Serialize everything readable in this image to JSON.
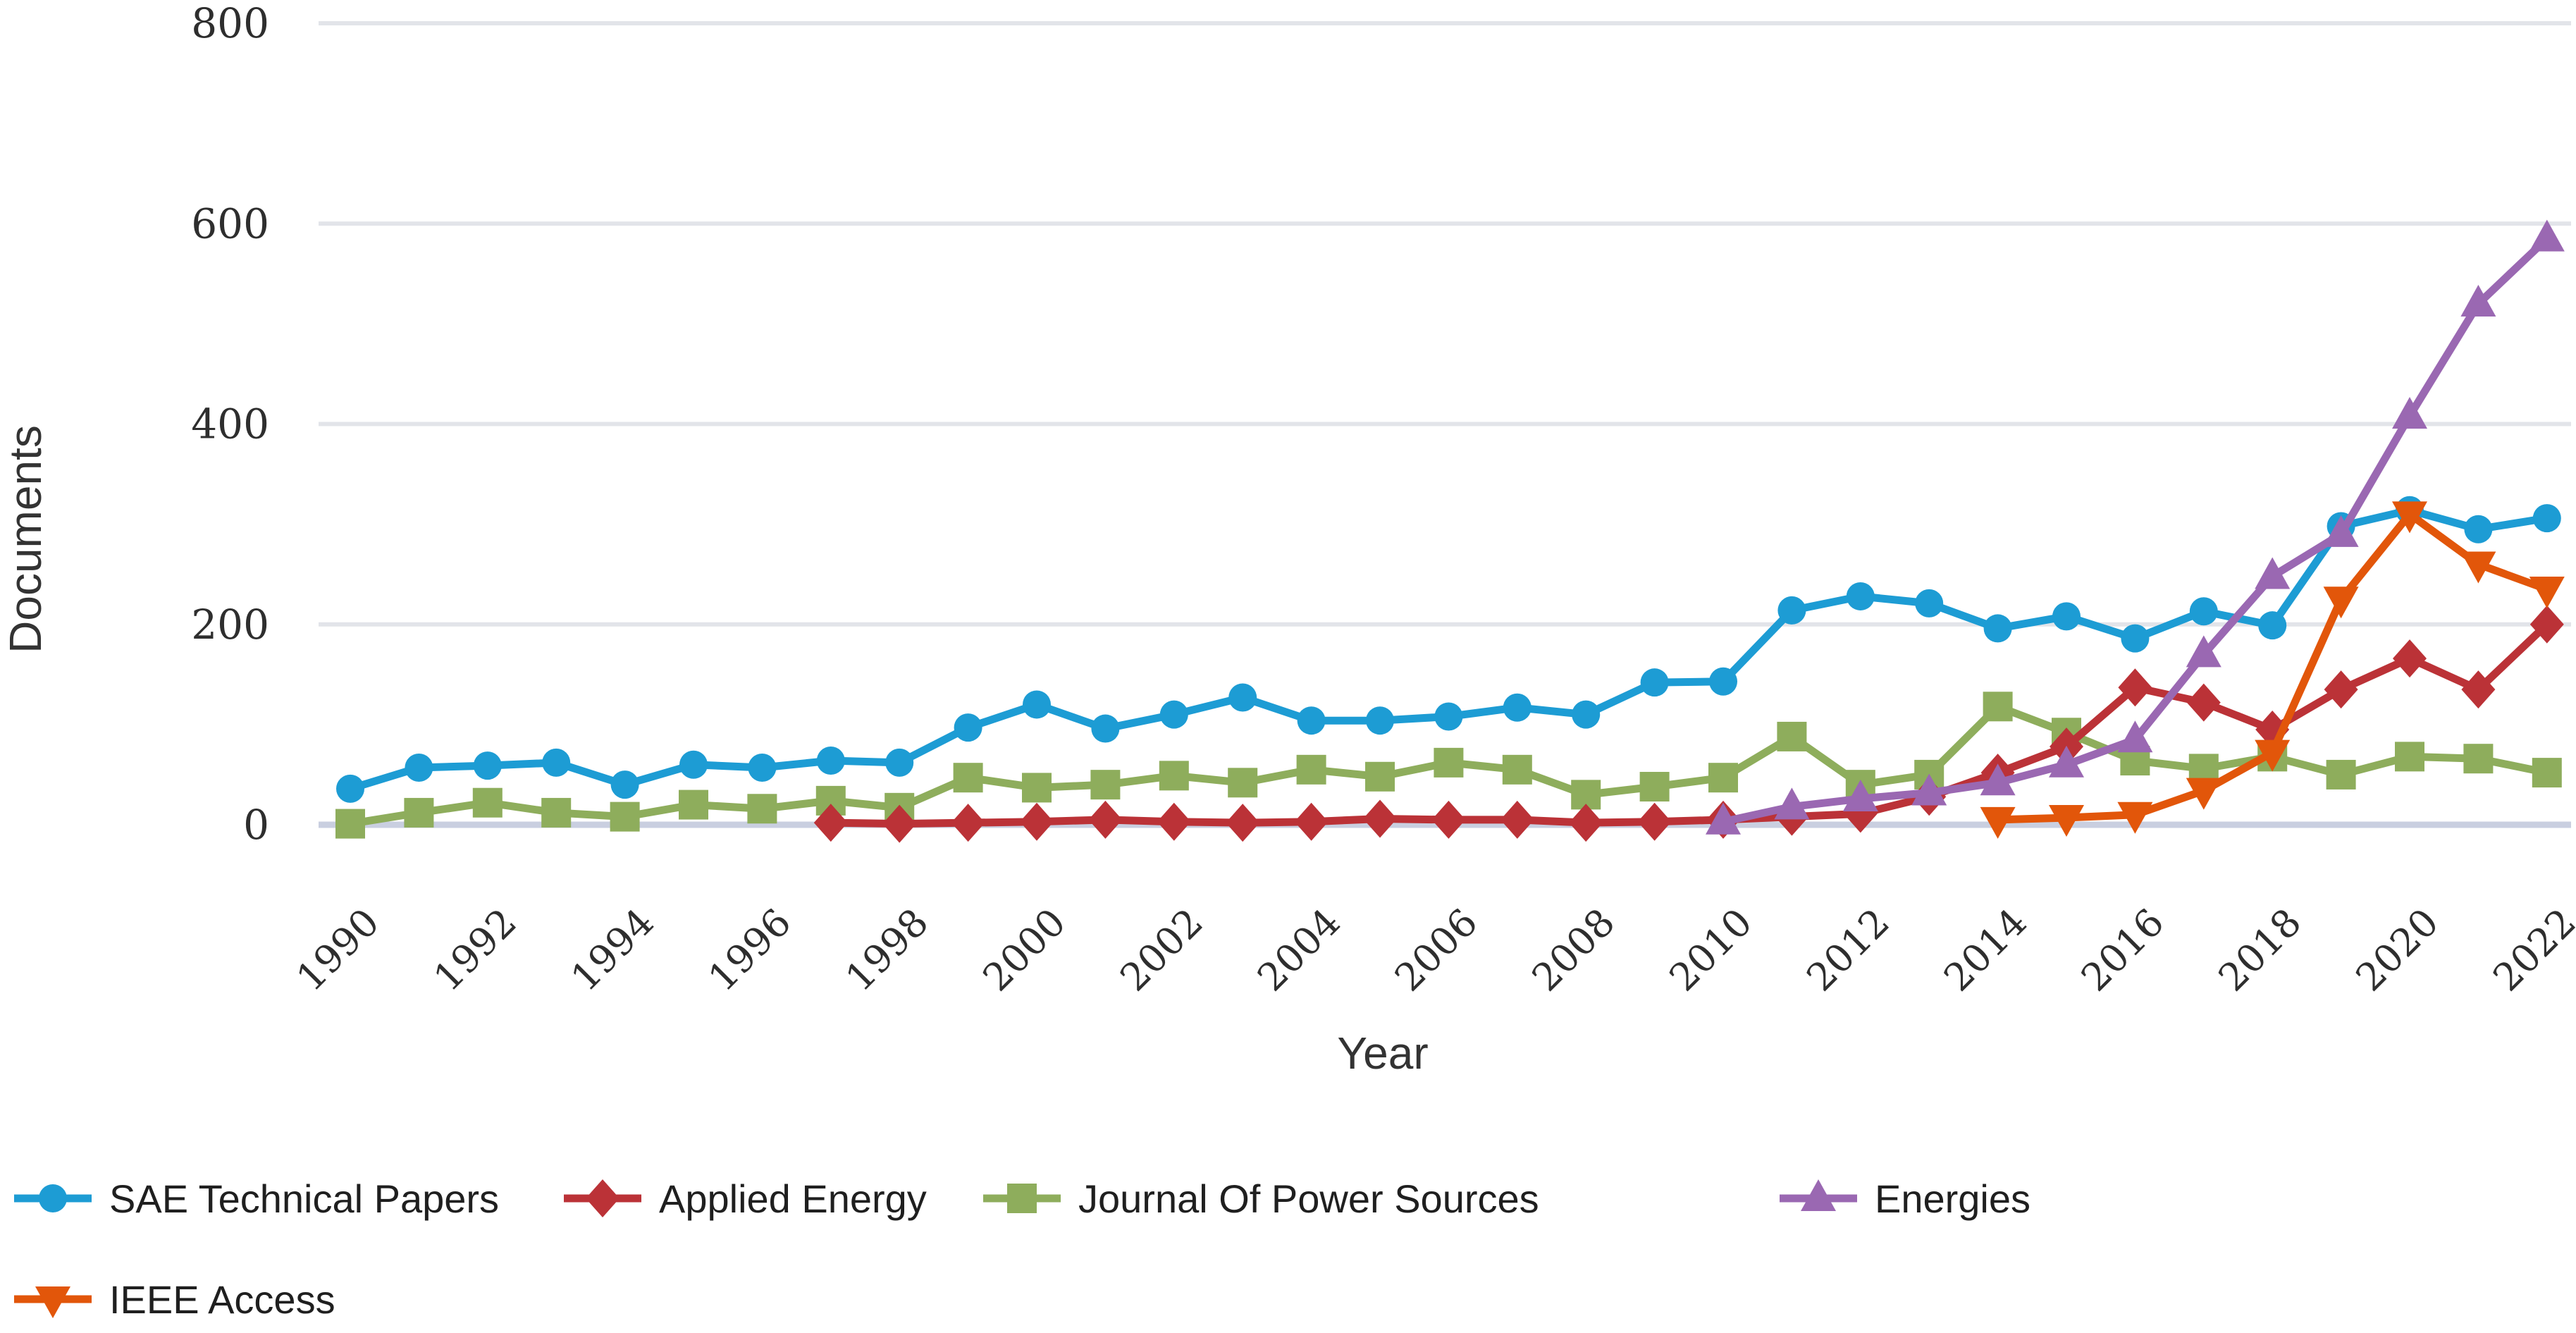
{
  "page": {
    "background_color": "#ffffff",
    "grid_color": "#e2e4e9",
    "zero_line_color": "#c9cfe0",
    "tick_text_color": "#2e2e2e",
    "axis_title_color": "#333333",
    "legend_text_color": "#1f1f1f"
  },
  "chart_data": {
    "type": "line",
    "title": "",
    "xlabel": "Year",
    "ylabel": "Documents",
    "x": [
      1990,
      1991,
      1992,
      1993,
      1994,
      1995,
      1996,
      1997,
      1998,
      1999,
      2000,
      2001,
      2002,
      2003,
      2004,
      2005,
      2006,
      2007,
      2008,
      2009,
      2010,
      2011,
      2012,
      2013,
      2014,
      2015,
      2016,
      2017,
      2018,
      2019,
      2020,
      2021,
      2022
    ],
    "x_tick_labels": [
      "1990",
      "1992",
      "1994",
      "1996",
      "1998",
      "2000",
      "2002",
      "2004",
      "2006",
      "2008",
      "2010",
      "2012",
      "2014",
      "2016",
      "2018",
      "2020",
      "2022"
    ],
    "y_tick_labels": [
      "0",
      "200",
      "400",
      "600",
      "800"
    ],
    "yticks": [
      0,
      200,
      400,
      600,
      800
    ],
    "ylim": [
      0,
      800
    ],
    "grid": "horizontal-only",
    "legend_position": "bottom-left-two-rows",
    "series": [
      {
        "name": "SAE Technical Papers",
        "color": "#1d9cd4",
        "marker": "circle",
        "values": [
          36,
          57,
          59,
          62,
          40,
          60,
          57,
          64,
          62,
          97,
          120,
          96,
          110,
          127,
          104,
          104,
          108,
          117,
          110,
          142,
          143,
          214,
          228,
          221,
          196,
          208,
          186,
          213,
          199,
          298,
          314,
          295,
          306
        ]
      },
      {
        "name": "Applied Energy",
        "color": "#bb3237",
        "marker": "diamond",
        "values": [
          null,
          null,
          null,
          null,
          null,
          null,
          null,
          2,
          1,
          2,
          3,
          5,
          3,
          2,
          3,
          6,
          5,
          5,
          2,
          3,
          5,
          8,
          11,
          28,
          52,
          78,
          137,
          122,
          95,
          135,
          166,
          135,
          200
        ]
      },
      {
        "name": "Journal Of Power Sources",
        "color": "#8ead5c",
        "marker": "square",
        "values": [
          1,
          12,
          22,
          12,
          8,
          20,
          16,
          24,
          17,
          47,
          37,
          40,
          49,
          42,
          55,
          48,
          62,
          55,
          30,
          38,
          47,
          88,
          40,
          50,
          118,
          92,
          64,
          56,
          68,
          50,
          68,
          66,
          52
        ]
      },
      {
        "name": "Energies",
        "color": "#9a68b2",
        "marker": "triangle-up",
        "values": [
          null,
          null,
          null,
          null,
          null,
          null,
          null,
          null,
          null,
          null,
          null,
          null,
          null,
          null,
          null,
          null,
          null,
          null,
          null,
          null,
          3,
          18,
          26,
          32,
          42,
          60,
          85,
          170,
          248,
          290,
          408,
          520,
          585
        ]
      },
      {
        "name": "IEEE Access",
        "color": "#e2560a",
        "marker": "triangle-down",
        "values": [
          null,
          null,
          null,
          null,
          null,
          null,
          null,
          null,
          null,
          null,
          null,
          null,
          null,
          null,
          null,
          null,
          null,
          null,
          null,
          null,
          null,
          null,
          null,
          null,
          5,
          7,
          10,
          34,
          72,
          225,
          310,
          260,
          235
        ]
      }
    ]
  }
}
